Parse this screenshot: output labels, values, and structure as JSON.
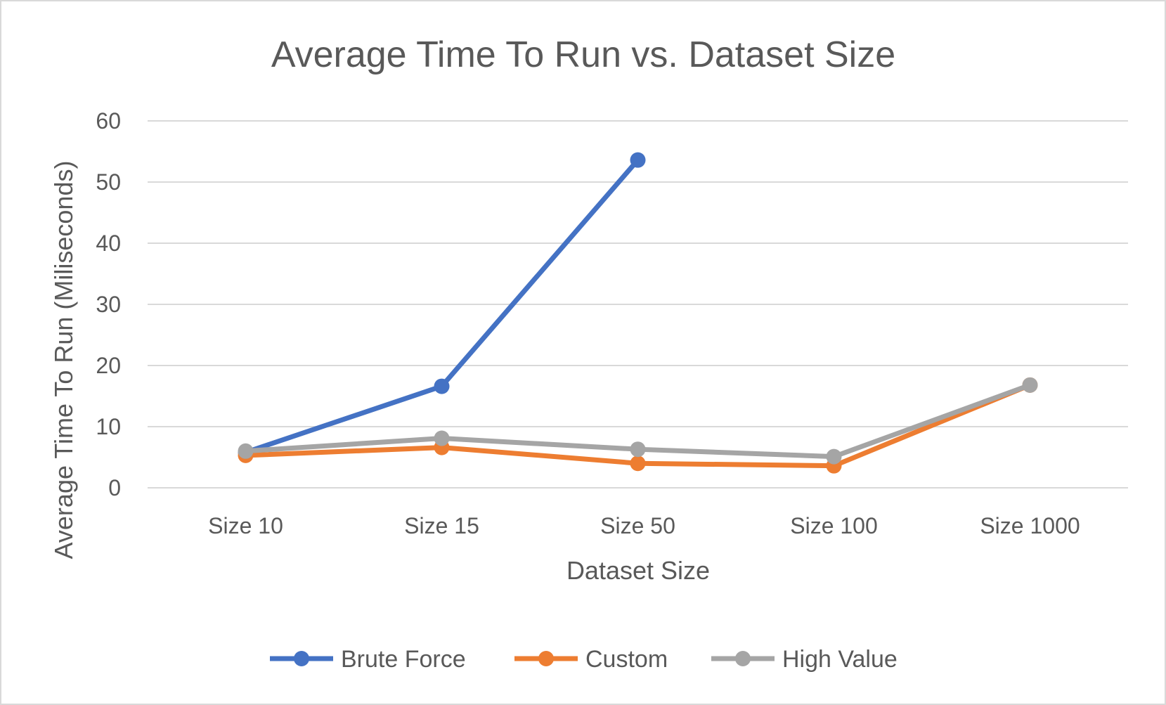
{
  "chart_data": {
    "type": "line",
    "title": "Average Time To Run vs. Dataset Size",
    "xlabel": "Dataset Size",
    "ylabel": "Average Time To Run (Miliseconds)",
    "categories": [
      "Size 10",
      "Size 15",
      "Size 50",
      "Size 100",
      "Size 1000"
    ],
    "ylim": [
      0,
      60
    ],
    "yticks": [
      0,
      10,
      20,
      30,
      40,
      50,
      60
    ],
    "grid": true,
    "legend_position": "bottom",
    "series": [
      {
        "name": "Brute Force",
        "color": "#4472c4",
        "values": [
          5.8,
          16.6,
          53.6,
          null,
          null
        ]
      },
      {
        "name": "Custom",
        "color": "#ed7d31",
        "values": [
          5.3,
          6.6,
          4.0,
          3.6,
          16.8
        ]
      },
      {
        "name": "High Value",
        "color": "#a5a5a5",
        "values": [
          6.0,
          8.1,
          6.3,
          5.1,
          16.8
        ]
      }
    ]
  }
}
